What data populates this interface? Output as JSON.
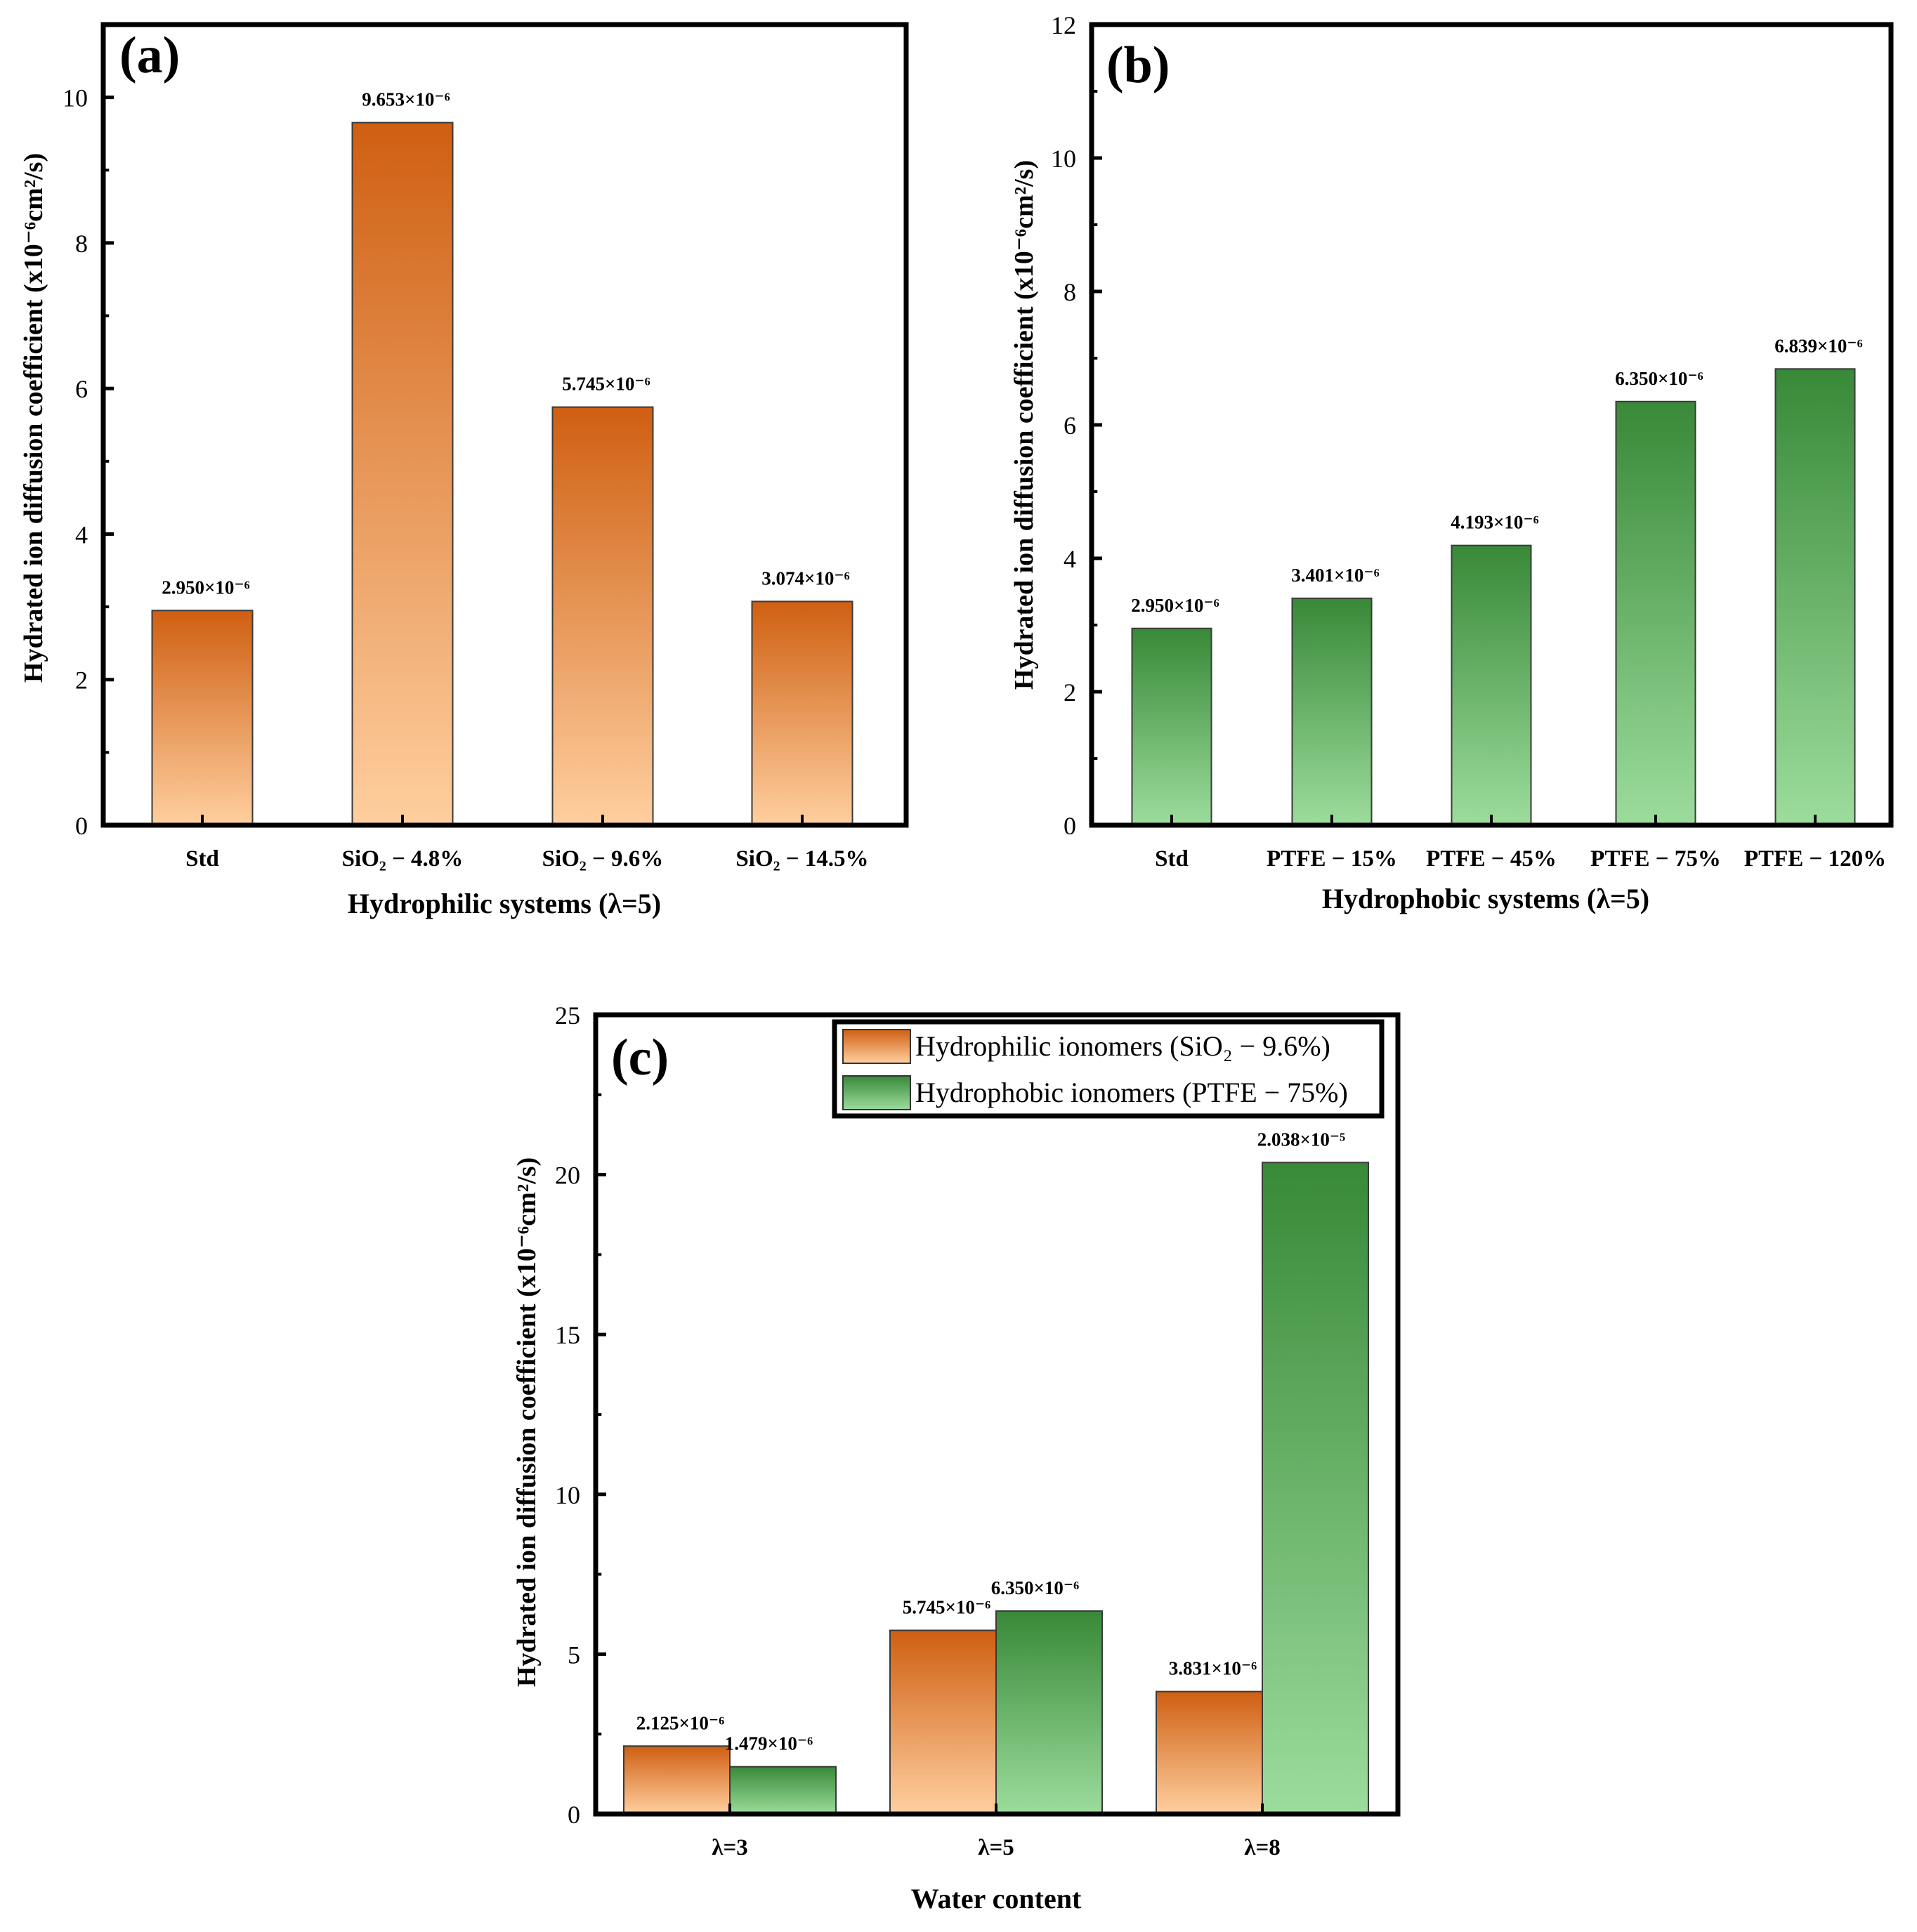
{
  "colors": {
    "orange_top": "#cf5f12",
    "orange_bottom": "#ffcf9f",
    "green_top": "#388938",
    "green_bottom": "#9cdc9c",
    "axis": "#000000"
  },
  "chart_data": [
    {
      "type": "bar",
      "panel": "(a)",
      "xlabel": "Hydrophilic systems (λ=5)",
      "ylabel": "Hydrated ion diffusion coefficient (x10⁻⁶cm²/s)",
      "ylim": [
        0,
        11
      ],
      "yticks": [
        0,
        2,
        4,
        6,
        8,
        10
      ],
      "categories": [
        "Std",
        "SiO₂ − 4.8%",
        "SiO₂ − 9.6%",
        "SiO₂ − 14.5%"
      ],
      "values": [
        2.95,
        9.653,
        5.745,
        3.074
      ],
      "labels": [
        "2.950×10⁻⁶",
        "9.653×10⁻⁶",
        "5.745×10⁻⁶",
        "3.074×10⁻⁶"
      ],
      "color": "orange"
    },
    {
      "type": "bar",
      "panel": "(b)",
      "xlabel": "Hydrophobic systems (λ=5)",
      "ylabel": "Hydrated ion diffusion coefficient (x10⁻⁶cm²/s)",
      "ylim": [
        0,
        12
      ],
      "yticks": [
        0,
        2,
        4,
        6,
        8,
        10,
        12
      ],
      "categories": [
        "Std",
        "PTFE − 15%",
        "PTFE − 45%",
        "PTFE − 75%",
        "PTFE − 120%"
      ],
      "values": [
        2.95,
        3.401,
        4.193,
        6.35,
        6.839
      ],
      "labels": [
        "2.950×10⁻⁶",
        "3.401×10⁻⁶",
        "4.193×10⁻⁶",
        "6.350×10⁻⁶",
        "6.839×10⁻⁶"
      ],
      "color": "green"
    },
    {
      "type": "bar",
      "panel": "(c)",
      "xlabel": "Water content",
      "ylabel": "Hydrated ion diffusion coefficient (x10⁻⁶cm²/s)",
      "ylim": [
        0,
        25
      ],
      "yticks": [
        0,
        5,
        10,
        15,
        20,
        25
      ],
      "categories": [
        "λ=3",
        "λ=5",
        "λ=8"
      ],
      "series": [
        {
          "name": "Hydrophilic ionomers (SiO₂ − 9.6%)",
          "color": "orange",
          "values": [
            2.125,
            5.745,
            3.831
          ],
          "labels": [
            "2.125×10⁻⁶",
            "5.745×10⁻⁶",
            "3.831×10⁻⁶"
          ]
        },
        {
          "name": "Hydrophobic ionomers (PTFE − 75%)",
          "color": "green",
          "values": [
            1.479,
            6.35,
            20.38
          ],
          "labels": [
            "1.479×10⁻⁶",
            "6.350×10⁻⁶",
            "2.038×10⁻⁵"
          ]
        }
      ],
      "legend_position": "top-right"
    }
  ]
}
